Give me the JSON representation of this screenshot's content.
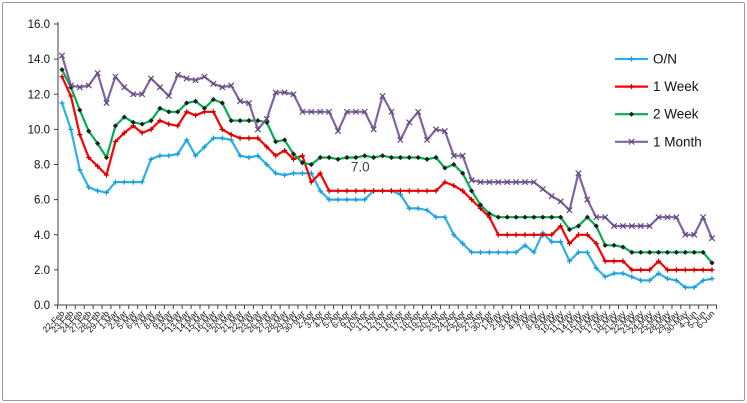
{
  "figure": {
    "background": "#ffffff",
    "border_color": "#9a9a9a"
  },
  "legend": {
    "items": [
      {
        "label": "O/N",
        "color": "#2CB0E8",
        "marker": "plus",
        "marker_color": "#1C9AD6"
      },
      {
        "label": "1 Week",
        "color": "#FF0000",
        "marker": "plus",
        "marker_color": "#C00000"
      },
      {
        "label": "2 Week",
        "color": "#00B050",
        "marker": "diamond",
        "marker_color": "#1f1f1f"
      },
      {
        "label": "1 Month",
        "color": "#8064A2",
        "marker": "x",
        "marker_color": "#5F497A"
      }
    ]
  },
  "chart_data": {
    "type": "line",
    "title": "",
    "xlabel": "",
    "ylabel": "",
    "grid": false,
    "legend_position": "right",
    "ylim": [
      0,
      16
    ],
    "ytick_step": 2,
    "ytick_labels": [
      "0.0",
      "2.0",
      "4.0",
      "6.0",
      "8.0",
      "10.0",
      "12.0",
      "14.0",
      "16.0"
    ],
    "x": [
      "22-Feb",
      "23-Feb",
      "24-Feb",
      "27-Feb",
      "28-Feb",
      "29-Feb",
      "1-Mar",
      "2-Mar",
      "5-Mar",
      "6-Mar",
      "7-Mar",
      "8-Mar",
      "9-Mar",
      "12-Mar",
      "13-Mar",
      "14-Mar",
      "15-Mar",
      "16-Mar",
      "19-Mar",
      "20-Mar",
      "21-Mar",
      "22-Mar",
      "23-Mar",
      "26-Mar",
      "27-Mar",
      "28-Mar",
      "29-Mar",
      "30-Mar",
      "2-Apr",
      "3-Apr",
      "4-Apr",
      "5-Apr",
      "6-Apr",
      "9-Apr",
      "10-Apr",
      "11-Apr",
      "12-Apr",
      "13-Apr",
      "16-Apr",
      "17-Apr",
      "18-Apr",
      "19-Apr",
      "20-Apr",
      "23-Apr",
      "24-Apr",
      "25-Apr",
      "26-Apr",
      "27-Apr",
      "30-Apr",
      "1-May",
      "2-May",
      "3-May",
      "4-May",
      "7-May",
      "8-May",
      "9-May",
      "10-May",
      "11-May",
      "14-May",
      "15-May",
      "16-May",
      "17-May",
      "18-May",
      "21-May",
      "22-May",
      "23-May",
      "24-May",
      "25-May",
      "28-May",
      "29-May",
      "30-May",
      "4-Jun",
      "5-Jun",
      "6-Jun"
    ],
    "series": [
      {
        "name": "O/N",
        "color": "#2CB0E8",
        "marker": "plus",
        "marker_color": "#1C9AD6",
        "values": [
          11.5,
          10.0,
          7.7,
          6.7,
          6.5,
          6.4,
          7.0,
          7.0,
          7.0,
          7.0,
          8.3,
          8.5,
          8.5,
          8.6,
          9.4,
          8.5,
          9.0,
          9.5,
          9.5,
          9.4,
          8.5,
          8.4,
          8.5,
          8.0,
          7.5,
          7.4,
          7.5,
          7.5,
          7.5,
          6.5,
          6.0,
          6.0,
          6.0,
          6.0,
          6.0,
          6.5,
          6.5,
          6.5,
          6.3,
          5.5,
          5.5,
          5.4,
          5.0,
          5.0,
          4.0,
          3.5,
          3.0,
          3.0,
          3.0,
          3.0,
          3.0,
          3.0,
          3.4,
          3.0,
          4.1,
          3.6,
          3.6,
          2.5,
          3.0,
          3.0,
          2.1,
          1.6,
          1.8,
          1.8,
          1.6,
          1.4,
          1.4,
          1.8,
          1.5,
          1.4,
          1.0,
          1.0,
          1.4,
          1.5
        ]
      },
      {
        "name": "1 Week",
        "color": "#FF0000",
        "marker": "plus",
        "marker_color": "#C00000",
        "values": [
          13.0,
          11.9,
          9.7,
          8.4,
          7.9,
          7.4,
          9.3,
          9.8,
          10.2,
          9.8,
          10.0,
          10.5,
          10.3,
          10.2,
          11.0,
          10.8,
          11.0,
          11.0,
          10.0,
          9.7,
          9.5,
          9.5,
          9.5,
          9.0,
          8.5,
          8.8,
          8.3,
          8.5,
          7.0,
          7.5,
          6.5,
          6.5,
          6.5,
          6.5,
          6.5,
          6.5,
          6.5,
          6.5,
          6.5,
          6.5,
          6.5,
          6.5,
          6.5,
          7.0,
          6.8,
          6.5,
          6.0,
          5.5,
          5.0,
          4.0,
          4.0,
          4.0,
          4.0,
          4.0,
          4.0,
          4.0,
          4.5,
          3.5,
          4.0,
          4.0,
          3.5,
          2.5,
          2.5,
          2.5,
          2.0,
          2.0,
          2.0,
          2.5,
          2.0,
          2.0,
          2.0,
          2.0,
          2.0,
          2.0
        ]
      },
      {
        "name": "2 Week",
        "color": "#00B050",
        "marker": "diamond",
        "marker_color": "#1f1f1f",
        "values": [
          13.4,
          12.4,
          11.1,
          9.9,
          9.2,
          8.4,
          10.2,
          10.7,
          10.4,
          10.3,
          10.5,
          11.2,
          11.0,
          11.0,
          11.5,
          11.6,
          11.2,
          11.7,
          11.5,
          10.5,
          10.5,
          10.5,
          10.5,
          10.4,
          9.3,
          9.4,
          8.6,
          8.1,
          8.0,
          8.4,
          8.4,
          8.3,
          8.4,
          8.4,
          8.5,
          8.4,
          8.5,
          8.4,
          8.4,
          8.4,
          8.4,
          8.3,
          8.4,
          7.8,
          8.0,
          7.5,
          6.5,
          5.7,
          5.2,
          5.0,
          5.0,
          5.0,
          5.0,
          5.0,
          5.0,
          5.0,
          5.0,
          4.3,
          4.5,
          5.0,
          4.5,
          3.4,
          3.4,
          3.3,
          3.0,
          3.0,
          3.0,
          3.0,
          3.0,
          3.0,
          3.0,
          3.0,
          3.0,
          2.4
        ]
      },
      {
        "name": "1 Month",
        "color": "#8064A2",
        "marker": "x",
        "marker_color": "#5F497A",
        "values": [
          14.2,
          12.5,
          12.4,
          12.5,
          13.2,
          11.5,
          13.0,
          12.4,
          12.0,
          12.0,
          12.9,
          12.4,
          11.9,
          13.1,
          12.9,
          12.8,
          13.0,
          12.6,
          12.4,
          12.5,
          11.6,
          11.5,
          10.0,
          10.6,
          12.1,
          12.1,
          12.0,
          11.0,
          11.0,
          11.0,
          11.0,
          9.9,
          11.0,
          11.0,
          11.0,
          10.0,
          11.9,
          11.0,
          9.4,
          10.4,
          11.0,
          9.4,
          10.0,
          9.9,
          8.5,
          8.5,
          7.1,
          7.0,
          7.0,
          7.0,
          7.0,
          7.0,
          7.0,
          7.0,
          6.6,
          6.2,
          5.9,
          5.4,
          7.5,
          6.0,
          5.0,
          5.0,
          4.5,
          4.5,
          4.5,
          4.5,
          4.5,
          5.0,
          5.0,
          5.0,
          4.0,
          4.0,
          5.0,
          3.8
        ]
      }
    ],
    "annotations": [
      {
        "text": "7.0",
        "x_index": 33.5,
        "y_value": 7.6,
        "color": "#3f3f3f"
      }
    ]
  }
}
